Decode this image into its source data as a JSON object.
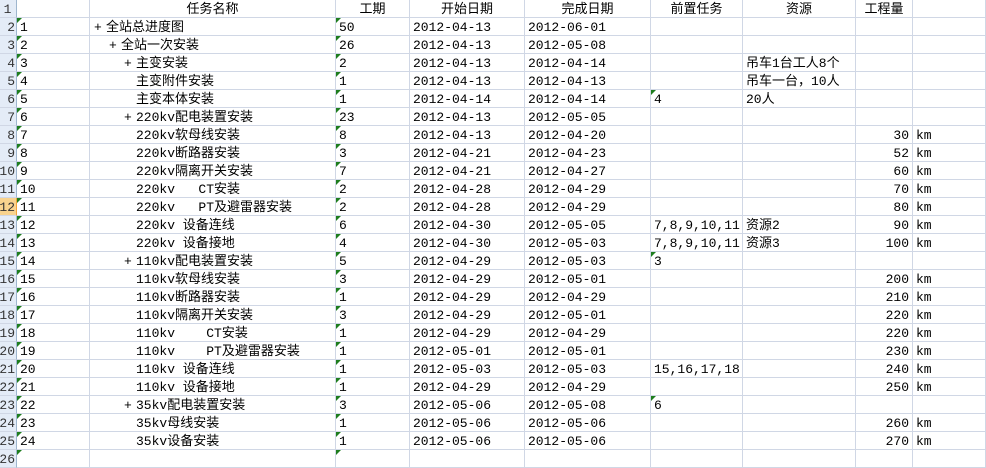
{
  "headers": {
    "A": "",
    "B": "任务名称",
    "C": "工期",
    "D": "开始日期",
    "E": "完成日期",
    "F": "前置任务",
    "G": "资源",
    "H": "工程量",
    "I": ""
  },
  "selected_row": 12,
  "colors": {
    "grid": "#d0d7e5",
    "row_header": "#e4ecf7",
    "selected_row_header": "#f8d38e",
    "error_triangle": "#1e7d1e"
  },
  "rows": [
    {
      "id": "1",
      "name": "全站总进度图",
      "level": 0,
      "expand": "+",
      "duration": "50",
      "start": "2012-04-13",
      "end": "2012-06-01",
      "pred": "",
      "resource": "",
      "qty": "",
      "unit": ""
    },
    {
      "id": "2",
      "name": "全站一次安装",
      "level": 1,
      "expand": "+",
      "duration": "26",
      "start": "2012-04-13",
      "end": "2012-05-08",
      "pred": "",
      "resource": "",
      "qty": "",
      "unit": ""
    },
    {
      "id": "3",
      "name": "主变安装",
      "level": 2,
      "expand": "+",
      "duration": "2",
      "start": "2012-04-13",
      "end": "2012-04-14",
      "pred": "",
      "resource": "吊车1台工人8个",
      "qty": "",
      "unit": ""
    },
    {
      "id": "4",
      "name": "主变附件安装",
      "level": 2,
      "expand": "",
      "duration": "1",
      "start": "2012-04-13",
      "end": "2012-04-13",
      "pred": "",
      "resource": "吊车一台，10人",
      "qty": "",
      "unit": ""
    },
    {
      "id": "5",
      "name": "主变本体安装",
      "level": 2,
      "expand": "",
      "duration": "1",
      "start": "2012-04-14",
      "end": "2012-04-14",
      "pred": "4",
      "resource": "20人",
      "qty": "",
      "unit": ""
    },
    {
      "id": "6",
      "name": "220kv配电装置安装",
      "level": 2,
      "expand": "+",
      "duration": "23",
      "start": "2012-04-13",
      "end": "2012-05-05",
      "pred": "",
      "resource": "",
      "qty": "",
      "unit": ""
    },
    {
      "id": "7",
      "name": "220kv软母线安装",
      "level": 2,
      "expand": "",
      "duration": "8",
      "start": "2012-04-13",
      "end": "2012-04-20",
      "pred": "",
      "resource": "",
      "qty": "30",
      "unit": "km"
    },
    {
      "id": "8",
      "name": "220kv断路器安装",
      "level": 2,
      "expand": "",
      "duration": "3",
      "start": "2012-04-21",
      "end": "2012-04-23",
      "pred": "",
      "resource": "",
      "qty": "52",
      "unit": "km"
    },
    {
      "id": "9",
      "name": "220kv隔离开关安装",
      "level": 2,
      "expand": "",
      "duration": "7",
      "start": "2012-04-21",
      "end": "2012-04-27",
      "pred": "",
      "resource": "",
      "qty": "60",
      "unit": "km"
    },
    {
      "id": "10",
      "name": "220kv   CT安装",
      "level": 2,
      "expand": "",
      "duration": "2",
      "start": "2012-04-28",
      "end": "2012-04-29",
      "pred": "",
      "resource": "",
      "qty": "70",
      "unit": "km"
    },
    {
      "id": "11",
      "name": "220kv   PT及避雷器安装",
      "level": 2,
      "expand": "",
      "duration": "2",
      "start": "2012-04-28",
      "end": "2012-04-29",
      "pred": "",
      "resource": "",
      "qty": "80",
      "unit": "km"
    },
    {
      "id": "12",
      "name": "220kv 设备连线",
      "level": 2,
      "expand": "",
      "duration": "6",
      "start": "2012-04-30",
      "end": "2012-05-05",
      "pred": "7,8,9,10,11",
      "resource": "资源2",
      "qty": "90",
      "unit": "km"
    },
    {
      "id": "13",
      "name": "220kv 设备接地",
      "level": 2,
      "expand": "",
      "duration": "4",
      "start": "2012-04-30",
      "end": "2012-05-03",
      "pred": "7,8,9,10,11",
      "resource": "资源3",
      "qty": "100",
      "unit": "km"
    },
    {
      "id": "14",
      "name": "110kv配电装置安装",
      "level": 2,
      "expand": "+",
      "duration": "5",
      "start": "2012-04-29",
      "end": "2012-05-03",
      "pred": "3",
      "resource": "",
      "qty": "",
      "unit": ""
    },
    {
      "id": "15",
      "name": "110kv软母线安装",
      "level": 2,
      "expand": "",
      "duration": "3",
      "start": "2012-04-29",
      "end": "2012-05-01",
      "pred": "",
      "resource": "",
      "qty": "200",
      "unit": "km"
    },
    {
      "id": "16",
      "name": "110kv断路器安装",
      "level": 2,
      "expand": "",
      "duration": "1",
      "start": "2012-04-29",
      "end": "2012-04-29",
      "pred": "",
      "resource": "",
      "qty": "210",
      "unit": "km"
    },
    {
      "id": "17",
      "name": "110kv隔离开关安装",
      "level": 2,
      "expand": "",
      "duration": "3",
      "start": "2012-04-29",
      "end": "2012-05-01",
      "pred": "",
      "resource": "",
      "qty": "220",
      "unit": "km"
    },
    {
      "id": "18",
      "name": "110kv    CT安装",
      "level": 2,
      "expand": "",
      "duration": "1",
      "start": "2012-04-29",
      "end": "2012-04-29",
      "pred": "",
      "resource": "",
      "qty": "220",
      "unit": "km"
    },
    {
      "id": "19",
      "name": "110kv    PT及避雷器安装",
      "level": 2,
      "expand": "",
      "duration": "1",
      "start": "2012-05-01",
      "end": "2012-05-01",
      "pred": "",
      "resource": "",
      "qty": "230",
      "unit": "km"
    },
    {
      "id": "20",
      "name": "110kv 设备连线",
      "level": 2,
      "expand": "",
      "duration": "1",
      "start": "2012-05-03",
      "end": "2012-05-03",
      "pred": "15,16,17,18",
      "resource": "",
      "qty": "240",
      "unit": "km"
    },
    {
      "id": "21",
      "name": "110kv 设备接地",
      "level": 2,
      "expand": "",
      "duration": "1",
      "start": "2012-04-29",
      "end": "2012-04-29",
      "pred": "",
      "resource": "",
      "qty": "250",
      "unit": "km"
    },
    {
      "id": "22",
      "name": "35kv配电装置安装",
      "level": 2,
      "expand": "+",
      "duration": "3",
      "start": "2012-05-06",
      "end": "2012-05-08",
      "pred": "6",
      "resource": "",
      "qty": "",
      "unit": ""
    },
    {
      "id": "23",
      "name": "35kv母线安装",
      "level": 2,
      "expand": "",
      "duration": "1",
      "start": "2012-05-06",
      "end": "2012-05-06",
      "pred": "",
      "resource": "",
      "qty": "260",
      "unit": "km"
    },
    {
      "id": "24",
      "name": "35kv设备安装",
      "level": 2,
      "expand": "",
      "duration": "1",
      "start": "2012-05-06",
      "end": "2012-05-06",
      "pred": "",
      "resource": "",
      "qty": "270",
      "unit": "km"
    }
  ]
}
